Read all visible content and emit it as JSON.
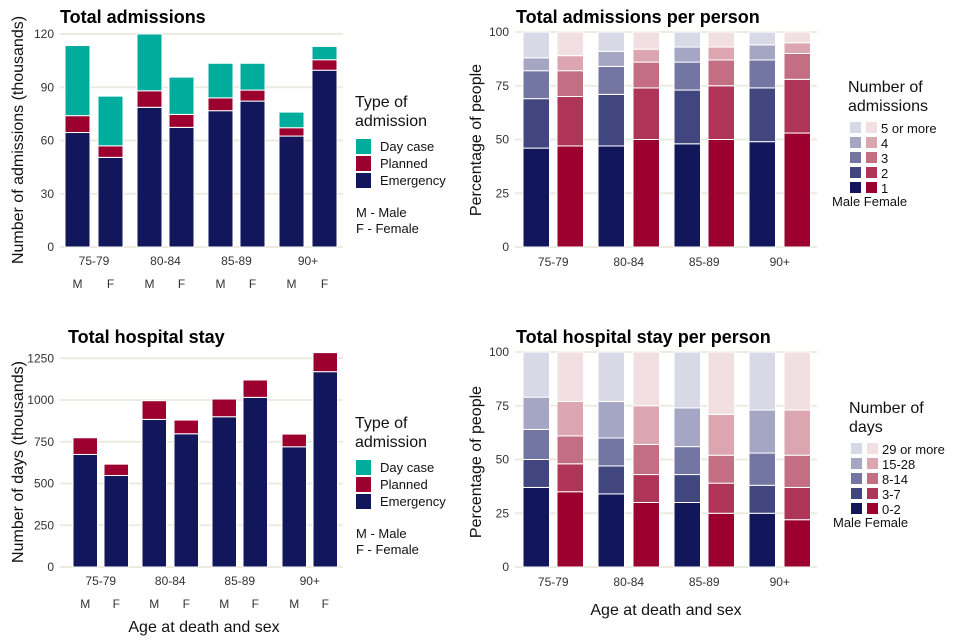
{
  "colors": {
    "day_case": "#00ad9c",
    "planned": "#9b002f",
    "emergency": "#12175c",
    "male_shades": [
      "#12175c",
      "#41477e",
      "#7375a2",
      "#a5a6c4",
      "#d8d8e7"
    ],
    "female_shades": [
      "#9b002f",
      "#ae3557",
      "#c36e83",
      "#dba6b0",
      "#f1dfe1"
    ],
    "grid": "#ebebe0"
  },
  "chart_data": [
    {
      "id": "total-admissions",
      "type": "bar",
      "stacked": true,
      "title": "Total admissions",
      "ylabel": "Number of admissions (thousands)",
      "xlabel": "",
      "ylim": [
        0,
        120
      ],
      "yticks": [
        0,
        30,
        60,
        90,
        120
      ],
      "groups": [
        "75-79",
        "80-84",
        "85-89",
        "90+"
      ],
      "sex_labels": [
        "M",
        "F"
      ],
      "series": [
        {
          "name": "Emergency",
          "color_key": "emergency",
          "values": [
            64.5,
            50.5,
            78.7,
            67.4,
            76.8,
            82.2,
            62.5,
            99.6
          ]
        },
        {
          "name": "Planned",
          "color_key": "planned",
          "values": [
            9.5,
            6.5,
            9.3,
            7.3,
            7.2,
            6.2,
            4.7,
            5.9
          ]
        },
        {
          "name": "Day case",
          "color_key": "day_case",
          "values": [
            39.5,
            28.0,
            32.0,
            21.0,
            19.5,
            15.1,
            8.8,
            7.5
          ]
        }
      ],
      "legend": {
        "title": [
          "Type of",
          "admission"
        ],
        "items": [
          "Day case",
          "Planned",
          "Emergency"
        ],
        "note": [
          "M - Male",
          "F - Female"
        ],
        "placement": "right"
      }
    },
    {
      "id": "admissions-per-person",
      "type": "bar",
      "stacked": true,
      "percent": true,
      "title": "Total admissions per person",
      "ylabel": "Percentage of people",
      "xlabel": "",
      "ylim": [
        0,
        100
      ],
      "yticks": [
        0,
        25,
        50,
        75,
        100
      ],
      "groups": [
        "75-79",
        "80-84",
        "85-89",
        "90+"
      ],
      "series": [
        {
          "name": "1",
          "values": [
            46,
            47,
            47,
            50,
            48,
            50,
            49,
            53
          ]
        },
        {
          "name": "2",
          "values": [
            23,
            23,
            24,
            24,
            25,
            25,
            25,
            25
          ]
        },
        {
          "name": "3",
          "values": [
            13,
            12,
            13,
            12,
            13,
            12,
            13,
            12
          ]
        },
        {
          "name": "4",
          "values": [
            6,
            7,
            7,
            6,
            7,
            6,
            7,
            5
          ]
        },
        {
          "name": "5 or more",
          "values": [
            12,
            11,
            9,
            8,
            7,
            7,
            6,
            5
          ]
        }
      ],
      "legend": {
        "title": [
          "Number of",
          "admissions"
        ],
        "items": [
          "5 or more",
          "4",
          "3",
          "2",
          "1"
        ],
        "sexes": "Male Female",
        "placement": "right"
      }
    },
    {
      "id": "total-hospital-stay",
      "type": "bar",
      "stacked": true,
      "title": "Total hospital stay",
      "ylabel": "Number of days (thousands)",
      "xlabel": "Age at death and sex",
      "ylim": [
        0,
        1280
      ],
      "yticks": [
        0,
        250,
        500,
        750,
        1000,
        1250
      ],
      "groups": [
        "75-79",
        "80-84",
        "85-89",
        "90+"
      ],
      "sex_labels": [
        "M",
        "F"
      ],
      "series": [
        {
          "name": "Emergency",
          "color_key": "emergency",
          "values": [
            674,
            548,
            884,
            798,
            900,
            1016,
            720,
            1170
          ]
        },
        {
          "name": "Planned",
          "color_key": "planned",
          "values": [
            100,
            68,
            112,
            82,
            106,
            104,
            76,
            114
          ]
        },
        {
          "name": "Day case",
          "color_key": "day_case",
          "values": [
            0,
            0,
            0,
            0,
            0,
            0,
            0,
            0
          ]
        }
      ],
      "legend": {
        "title": [
          "Type of",
          "admission"
        ],
        "items": [
          "Day case",
          "Planned",
          "Emergency"
        ],
        "note": [
          "M - Male",
          "F - Female"
        ],
        "placement": "right"
      }
    },
    {
      "id": "stay-per-person",
      "type": "bar",
      "stacked": true,
      "percent": true,
      "title": "Total hospital stay per person",
      "ylabel": "Percentage of people",
      "xlabel": "Age at death and sex",
      "ylim": [
        0,
        100
      ],
      "yticks": [
        0,
        25,
        50,
        75,
        100
      ],
      "groups": [
        "75-79",
        "80-84",
        "85-89",
        "90+"
      ],
      "series": [
        {
          "name": "0-2",
          "values": [
            37,
            35,
            34,
            30,
            30,
            25,
            25,
            22
          ]
        },
        {
          "name": "3-7",
          "values": [
            13,
            13,
            13,
            13,
            13,
            14,
            13,
            15
          ]
        },
        {
          "name": "8-14",
          "values": [
            14,
            13,
            13,
            14,
            13,
            13,
            15,
            15
          ]
        },
        {
          "name": "15-28",
          "values": [
            15,
            16,
            17,
            18,
            18,
            19,
            20,
            21
          ]
        },
        {
          "name": "29 or more",
          "values": [
            21,
            23,
            23,
            25,
            26,
            29,
            27,
            27
          ]
        }
      ],
      "legend": {
        "title": [
          "Number of",
          "days"
        ],
        "items": [
          "29 or more",
          "15-28",
          "8-14",
          "3-7",
          "0-2"
        ],
        "sexes": "Male Female",
        "placement": "right"
      }
    }
  ]
}
